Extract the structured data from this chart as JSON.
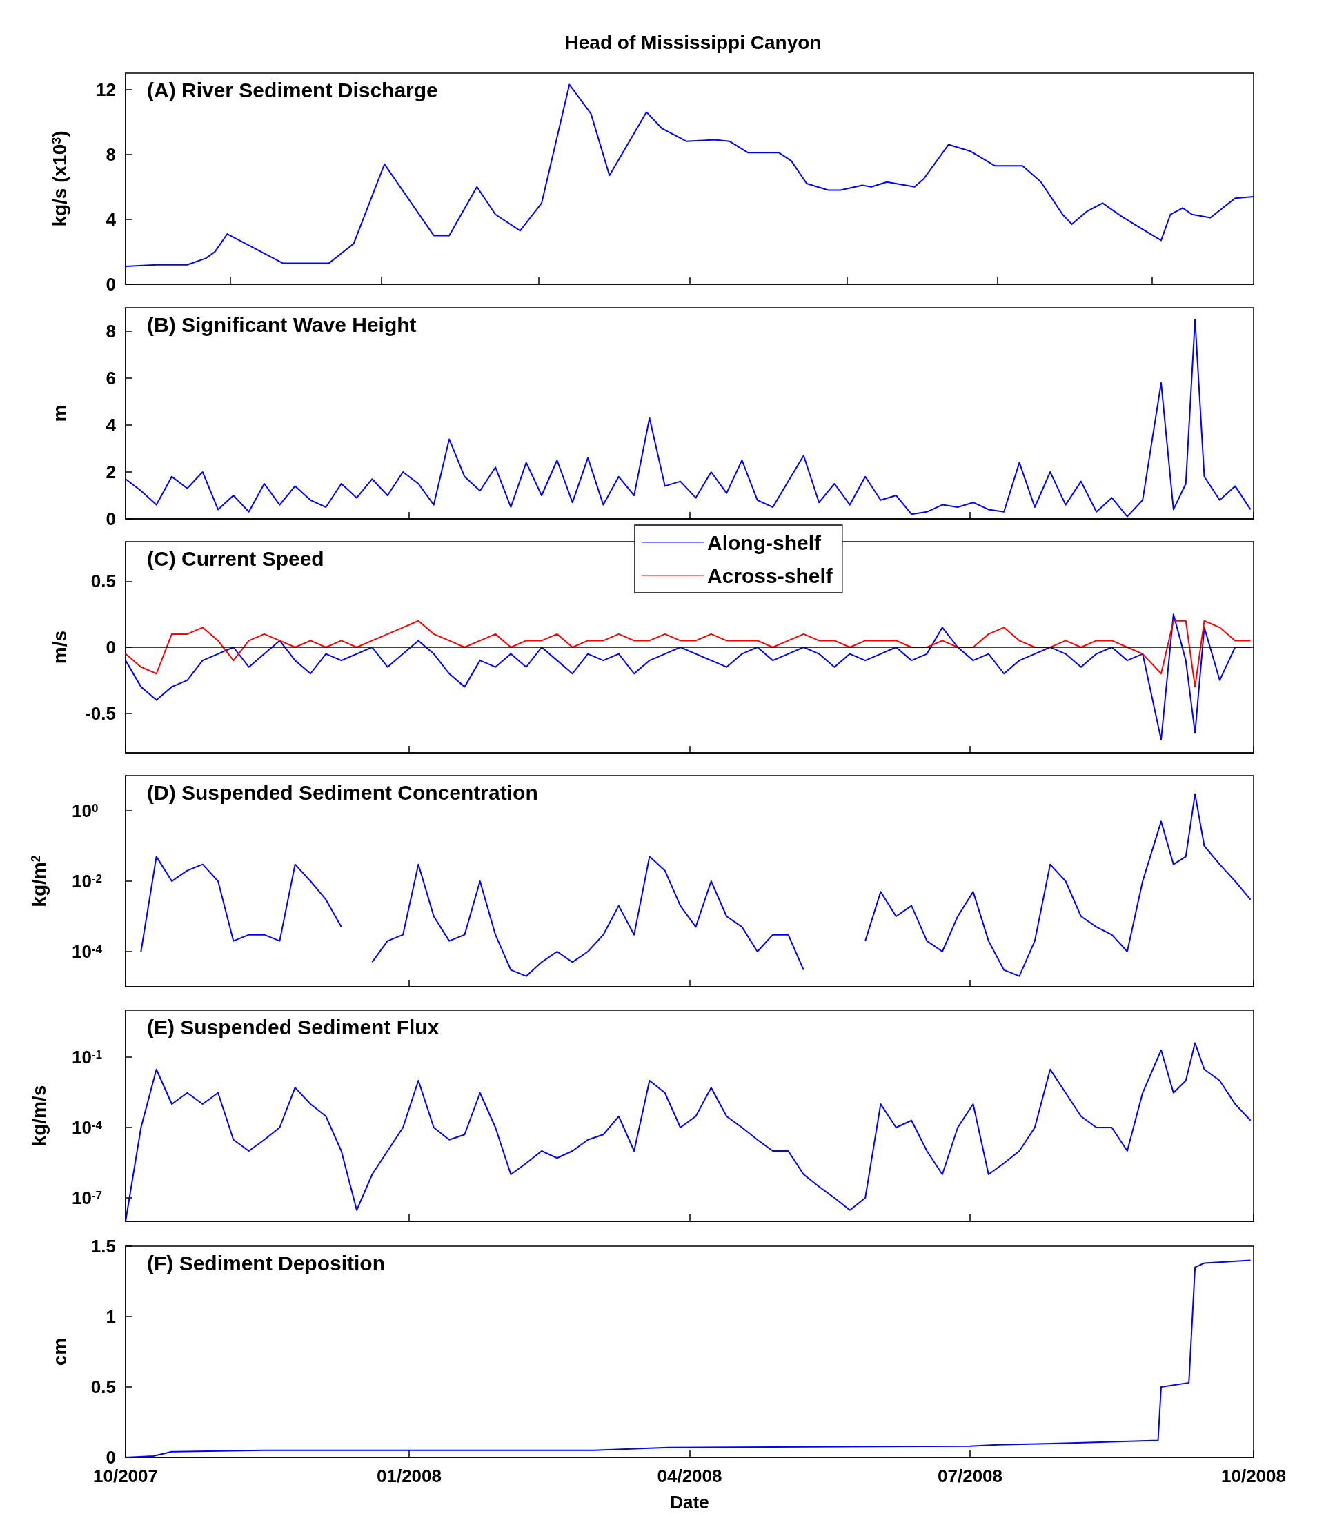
{
  "chart_data": [
    {
      "type": "line",
      "title": "Head of Mississippi Canyon",
      "subtitle": "(A) River Sediment Discharge",
      "ylabel": "kg/s (x10$^{3}$)",
      "marker": "none",
      "tick_labels": "y",
      "grid": false,
      "xlim": [
        "2007-10-01",
        "2008-10-01"
      ],
      "xticks": [
        {
          "value": "2007-11-04",
          "label": null
        },
        {
          "value": "2007-12-23",
          "label": null
        },
        {
          "value": "2008-02-12",
          "label": null
        },
        {
          "value": "2008-04-01",
          "label": null
        },
        {
          "value": "2008-05-22",
          "label": null
        },
        {
          "value": "2008-07-10",
          "label": null
        },
        {
          "value": "2008-08-29",
          "label": null
        }
      ],
      "ylim": [
        0,
        13
      ],
      "yticks": [
        0,
        4,
        8,
        12
      ],
      "color": "#0000ff",
      "x": [
        "2007-10-01",
        "2007-10-11",
        "2007-10-21",
        "2007-10-27",
        "2007-10-30",
        "2007-11-03",
        "2007-11-21",
        "2007-12-06",
        "2007-12-14",
        "2007-12-24",
        "2008-01-09",
        "2008-01-14",
        "2008-01-23",
        "2008-01-29",
        "2008-02-06",
        "2008-02-13",
        "2008-02-22",
        "2008-02-29",
        "2008-03-06",
        "2008-03-18",
        "2008-03-23",
        "2008-03-27",
        "2008-03-31",
        "2008-04-09",
        "2008-04-14",
        "2008-04-20",
        "2008-04-30",
        "2008-05-04",
        "2008-05-09",
        "2008-05-16",
        "2008-05-20",
        "2008-05-27",
        "2008-05-30",
        "2008-06-04",
        "2008-06-13",
        "2008-06-16",
        "2008-06-24",
        "2008-07-01",
        "2008-07-09",
        "2008-07-18",
        "2008-07-24",
        "2008-07-31",
        "2008-08-03",
        "2008-08-08",
        "2008-08-13",
        "2008-08-19",
        "2008-08-25",
        "2008-09-01",
        "2008-09-04",
        "2008-09-08",
        "2008-09-11",
        "2008-09-17",
        "2008-09-25",
        "2008-10-01"
      ],
      "values": [
        1.1,
        1.2,
        1.2,
        1.6,
        2.0,
        3.1,
        1.3,
        1.3,
        2.5,
        7.4,
        3.0,
        3.0,
        6.0,
        4.3,
        3.3,
        5.0,
        12.3,
        10.5,
        6.7,
        10.6,
        9.6,
        9.2,
        8.8,
        8.9,
        8.8,
        8.1,
        8.1,
        7.6,
        6.2,
        5.8,
        5.8,
        6.1,
        6.0,
        6.3,
        6.0,
        6.5,
        8.6,
        8.2,
        7.3,
        7.3,
        6.3,
        4.3,
        3.7,
        4.5,
        5.0,
        4.2,
        3.5,
        2.7,
        4.3,
        4.7,
        4.3,
        4.1,
        5.3,
        5.4
      ]
    },
    {
      "type": "line",
      "title": "(B) Significant Wave Height",
      "ylabel": "m",
      "marker": "none",
      "tick_labels": "y",
      "grid": false,
      "xlim": [
        "2007-10-01",
        "2008-10-01"
      ],
      "xticks": [
        {
          "value": "2007-10-01",
          "label": null
        },
        {
          "value": "2008-01-01",
          "label": null
        },
        {
          "value": "2008-04-01",
          "label": null
        },
        {
          "value": "2008-07-01",
          "label": null
        },
        {
          "value": "2008-10-01",
          "label": null
        }
      ],
      "ylim": [
        0,
        9
      ],
      "yticks": [
        0,
        2,
        4,
        6,
        8
      ],
      "color": "#0000ff",
      "x": [
        "2007-10-01",
        "2007-10-06",
        "2007-10-11",
        "2007-10-16",
        "2007-10-21",
        "2007-10-26",
        "2007-10-31",
        "2007-11-05",
        "2007-11-10",
        "2007-11-15",
        "2007-11-20",
        "2007-11-25",
        "2007-11-30",
        "2007-12-05",
        "2007-12-10",
        "2007-12-15",
        "2007-12-20",
        "2007-12-25",
        "2007-12-30",
        "2008-01-04",
        "2008-01-09",
        "2008-01-14",
        "2008-01-19",
        "2008-01-24",
        "2008-01-29",
        "2008-02-03",
        "2008-02-08",
        "2008-02-13",
        "2008-02-18",
        "2008-02-23",
        "2008-02-28",
        "2008-03-04",
        "2008-03-09",
        "2008-03-14",
        "2008-03-19",
        "2008-03-24",
        "2008-03-29",
        "2008-04-03",
        "2008-04-08",
        "2008-04-13",
        "2008-04-18",
        "2008-04-23",
        "2008-04-28",
        "2008-05-03",
        "2008-05-08",
        "2008-05-13",
        "2008-05-18",
        "2008-05-23",
        "2008-05-28",
        "2008-06-02",
        "2008-06-07",
        "2008-06-12",
        "2008-06-17",
        "2008-06-22",
        "2008-06-27",
        "2008-07-02",
        "2008-07-07",
        "2008-07-12",
        "2008-07-17",
        "2008-07-22",
        "2008-07-27",
        "2008-08-01",
        "2008-08-06",
        "2008-08-11",
        "2008-08-16",
        "2008-08-21",
        "2008-08-26",
        "2008-09-01",
        "2008-09-05",
        "2008-09-09",
        "2008-09-12",
        "2008-09-15",
        "2008-09-20",
        "2008-09-25",
        "2008-09-30"
      ],
      "values": [
        1.7,
        1.2,
        0.6,
        1.8,
        1.3,
        2.0,
        0.4,
        1.0,
        0.3,
        1.5,
        0.6,
        1.4,
        0.8,
        0.5,
        1.5,
        0.9,
        1.7,
        1.0,
        2.0,
        1.5,
        0.6,
        3.4,
        1.8,
        1.2,
        2.2,
        0.5,
        2.4,
        1.0,
        2.5,
        0.7,
        2.6,
        0.6,
        1.8,
        1.0,
        4.3,
        1.4,
        1.6,
        0.9,
        2.0,
        1.1,
        2.5,
        0.8,
        0.5,
        1.6,
        2.7,
        0.7,
        1.5,
        0.6,
        1.8,
        0.8,
        1.0,
        0.2,
        0.3,
        0.6,
        0.5,
        0.7,
        0.4,
        0.3,
        2.4,
        0.5,
        2.0,
        0.6,
        1.6,
        0.3,
        0.9,
        0.1,
        0.8,
        5.8,
        0.4,
        1.5,
        8.5,
        1.8,
        0.8,
        1.4,
        0.4
      ]
    },
    {
      "type": "line",
      "title": "(C) Current Speed",
      "ylabel": "m/s",
      "marker": "none",
      "tick_labels": "y",
      "grid": false,
      "legend": "top",
      "xlim": [
        "2007-10-01",
        "2008-10-01"
      ],
      "xticks": [
        {
          "value": "2007-10-01",
          "label": null
        },
        {
          "value": "2008-01-01",
          "label": null
        },
        {
          "value": "2008-04-01",
          "label": null
        },
        {
          "value": "2008-07-01",
          "label": null
        },
        {
          "value": "2008-10-01",
          "label": null
        }
      ],
      "ylim": [
        -0.8,
        0.8
      ],
      "yticks": [
        -0.5,
        0,
        0.5
      ],
      "ref_lines": [
        {
          "axis": "y",
          "value": 0,
          "color": "#000000"
        }
      ],
      "x": [
        "2007-10-01",
        "2007-10-06",
        "2007-10-11",
        "2007-10-16",
        "2007-10-21",
        "2007-10-26",
        "2007-10-31",
        "2007-11-05",
        "2007-11-10",
        "2007-11-15",
        "2007-11-20",
        "2007-11-25",
        "2007-11-30",
        "2007-12-05",
        "2007-12-10",
        "2007-12-15",
        "2007-12-20",
        "2007-12-25",
        "2007-12-30",
        "2008-01-04",
        "2008-01-09",
        "2008-01-14",
        "2008-01-19",
        "2008-01-24",
        "2008-01-29",
        "2008-02-03",
        "2008-02-08",
        "2008-02-13",
        "2008-02-18",
        "2008-02-23",
        "2008-02-28",
        "2008-03-04",
        "2008-03-09",
        "2008-03-14",
        "2008-03-19",
        "2008-03-24",
        "2008-03-29",
        "2008-04-03",
        "2008-04-08",
        "2008-04-13",
        "2008-04-18",
        "2008-04-23",
        "2008-04-28",
        "2008-05-03",
        "2008-05-08",
        "2008-05-13",
        "2008-05-18",
        "2008-05-23",
        "2008-05-28",
        "2008-06-02",
        "2008-06-07",
        "2008-06-12",
        "2008-06-17",
        "2008-06-22",
        "2008-06-27",
        "2008-07-02",
        "2008-07-07",
        "2008-07-12",
        "2008-07-17",
        "2008-07-22",
        "2008-07-27",
        "2008-08-01",
        "2008-08-06",
        "2008-08-11",
        "2008-08-16",
        "2008-08-21",
        "2008-08-26",
        "2008-09-01",
        "2008-09-05",
        "2008-09-09",
        "2008-09-12",
        "2008-09-15",
        "2008-09-20",
        "2008-09-25",
        "2008-09-30"
      ],
      "series": [
        {
          "name": "Along-shelf",
          "color": "#0000ff",
          "values": [
            -0.1,
            -0.3,
            -0.4,
            -0.3,
            -0.25,
            -0.1,
            -0.05,
            0.0,
            -0.15,
            -0.05,
            0.05,
            -0.1,
            -0.2,
            -0.05,
            -0.1,
            -0.05,
            0.0,
            -0.15,
            -0.05,
            0.05,
            -0.05,
            -0.2,
            -0.3,
            -0.1,
            -0.15,
            -0.05,
            -0.15,
            0.0,
            -0.1,
            -0.2,
            -0.05,
            -0.1,
            -0.05,
            -0.2,
            -0.1,
            -0.05,
            0.0,
            -0.05,
            -0.1,
            -0.15,
            -0.05,
            0.0,
            -0.1,
            -0.05,
            0.0,
            -0.05,
            -0.15,
            -0.05,
            -0.1,
            -0.05,
            0.0,
            -0.1,
            -0.05,
            0.15,
            0.0,
            -0.1,
            -0.05,
            -0.2,
            -0.1,
            -0.05,
            0.0,
            -0.05,
            -0.15,
            -0.05,
            0.0,
            -0.1,
            -0.05,
            -0.7,
            0.25,
            -0.1,
            -0.65,
            0.15,
            -0.25,
            0.0,
            0.0
          ]
        },
        {
          "name": "Across-shelf",
          "color": "#ff0000",
          "values": [
            -0.05,
            -0.15,
            -0.2,
            0.1,
            0.1,
            0.15,
            0.05,
            -0.1,
            0.05,
            0.1,
            0.05,
            0.0,
            0.05,
            0.0,
            0.05,
            0.0,
            0.05,
            0.1,
            0.15,
            0.2,
            0.1,
            0.05,
            0.0,
            0.05,
            0.1,
            0.0,
            0.05,
            0.05,
            0.1,
            0.0,
            0.05,
            0.05,
            0.1,
            0.05,
            0.05,
            0.1,
            0.05,
            0.05,
            0.1,
            0.05,
            0.05,
            0.05,
            0.0,
            0.05,
            0.1,
            0.05,
            0.05,
            0.0,
            0.05,
            0.05,
            0.05,
            0.0,
            0.0,
            0.05,
            0.0,
            0.0,
            0.1,
            0.15,
            0.05,
            0.0,
            0.0,
            0.05,
            0.0,
            0.05,
            0.05,
            0.0,
            -0.05,
            -0.2,
            0.2,
            0.2,
            -0.3,
            0.2,
            0.15,
            0.05,
            0.05
          ]
        }
      ]
    },
    {
      "type": "line",
      "title": "(D) Suspended Sediment Concentration",
      "ylabel": "kg/m$^{2}$",
      "marker": "none",
      "tick_labels": "y",
      "grid": false,
      "log": "y",
      "xlim": [
        "2007-10-01",
        "2008-10-01"
      ],
      "xticks": [
        {
          "value": "2007-10-01",
          "label": null
        },
        {
          "value": "2008-01-01",
          "label": null
        },
        {
          "value": "2008-04-01",
          "label": null
        },
        {
          "value": "2008-07-01",
          "label": null
        },
        {
          "value": "2008-10-01",
          "label": null
        }
      ],
      "ylim": [
        1e-05,
        10
      ],
      "yticks": [
        {
          "value": 0.0001,
          "label": "10$^{-4}$"
        },
        {
          "value": 0.01,
          "label": "10$^{-2}$"
        },
        {
          "value": 1,
          "label": "10$^{0}$"
        }
      ],
      "color": "#0000ff",
      "x": [
        "2007-10-06",
        "2007-10-11",
        "2007-10-16",
        "2007-10-21",
        "2007-10-26",
        "2007-10-31",
        "2007-11-05",
        "2007-11-10",
        "2007-11-15",
        "2007-11-20",
        "2007-11-25",
        "2007-11-30",
        "2007-12-05",
        "2007-12-10",
        "2007-12-15",
        "2007-12-20",
        "2007-12-25",
        "2007-12-30",
        "2008-01-04",
        "2008-01-09",
        "2008-01-14",
        "2008-01-19",
        "2008-01-24",
        "2008-01-29",
        "2008-02-03",
        "2008-02-08",
        "2008-02-13",
        "2008-02-18",
        "2008-02-23",
        "2008-02-28",
        "2008-03-04",
        "2008-03-09",
        "2008-03-14",
        "2008-03-19",
        "2008-03-24",
        "2008-03-29",
        "2008-04-03",
        "2008-04-08",
        "2008-04-13",
        "2008-04-18",
        "2008-04-23",
        "2008-04-28",
        "2008-05-03",
        "2008-05-08",
        "2008-05-13",
        "2008-05-18",
        "2008-05-23",
        "2008-05-28",
        "2008-06-02",
        "2008-06-07",
        "2008-06-12",
        "2008-06-17",
        "2008-06-22",
        "2008-06-27",
        "2008-07-02",
        "2008-07-07",
        "2008-07-12",
        "2008-07-17",
        "2008-07-22",
        "2008-07-27",
        "2008-08-01",
        "2008-08-06",
        "2008-08-11",
        "2008-08-16",
        "2008-08-21",
        "2008-08-26",
        "2008-09-01",
        "2008-09-05",
        "2008-09-09",
        "2008-09-12",
        "2008-09-15",
        "2008-09-20",
        "2008-09-25",
        "2008-09-30"
      ],
      "values": [
        0.0001,
        0.05,
        0.01,
        0.02,
        0.03,
        0.01,
        0.0002,
        0.0003,
        0.0003,
        0.0002,
        0.03,
        0.01,
        0.003,
        0.0005,
        null,
        5e-05,
        0.0002,
        0.0003,
        0.03,
        0.001,
        0.0002,
        0.0003,
        0.01,
        0.0003,
        3e-05,
        2e-05,
        5e-05,
        0.0001,
        5e-05,
        0.0001,
        0.0003,
        0.002,
        0.0003,
        0.05,
        0.02,
        0.002,
        0.0005,
        0.01,
        0.001,
        0.0005,
        0.0001,
        0.0003,
        0.0003,
        3e-05,
        null,
        null,
        null,
        0.0002,
        0.005,
        0.001,
        0.002,
        0.0002,
        0.0001,
        0.001,
        0.005,
        0.0002,
        3e-05,
        2e-05,
        0.0002,
        0.03,
        0.01,
        0.001,
        0.0005,
        0.0003,
        0.0001,
        0.01,
        0.5,
        0.03,
        0.05,
        3,
        0.1,
        0.03,
        0.01,
        0.003
      ]
    },
    {
      "type": "line",
      "title": "(E) Suspended Sediment Flux",
      "ylabel": "kg/m/s",
      "marker": "none",
      "tick_labels": "y",
      "grid": false,
      "log": "y",
      "xlim": [
        "2007-10-01",
        "2008-10-01"
      ],
      "xticks": [
        {
          "value": "2007-10-01",
          "label": null
        },
        {
          "value": "2008-01-01",
          "label": null
        },
        {
          "value": "2008-04-01",
          "label": null
        },
        {
          "value": "2008-07-01",
          "label": null
        },
        {
          "value": "2008-10-01",
          "label": null
        }
      ],
      "ylim": [
        1e-08,
        10
      ],
      "yticks": [
        {
          "value": 1e-07,
          "label": "10$^{-7}$"
        },
        {
          "value": 0.0001,
          "label": "10$^{-4}$"
        },
        {
          "value": 0.1,
          "label": "10$^{-1}$"
        }
      ],
      "color": "#0000ff",
      "x": [
        "2007-10-01",
        "2007-10-06",
        "2007-10-11",
        "2007-10-16",
        "2007-10-21",
        "2007-10-26",
        "2007-10-31",
        "2007-11-05",
        "2007-11-10",
        "2007-11-15",
        "2007-11-20",
        "2007-11-25",
        "2007-11-30",
        "2007-12-05",
        "2007-12-10",
        "2007-12-15",
        "2007-12-20",
        "2007-12-25",
        "2007-12-30",
        "2008-01-04",
        "2008-01-09",
        "2008-01-14",
        "2008-01-19",
        "2008-01-24",
        "2008-01-29",
        "2008-02-03",
        "2008-02-08",
        "2008-02-13",
        "2008-02-18",
        "2008-02-23",
        "2008-02-28",
        "2008-03-04",
        "2008-03-09",
        "2008-03-14",
        "2008-03-19",
        "2008-03-24",
        "2008-03-29",
        "2008-04-03",
        "2008-04-08",
        "2008-04-13",
        "2008-04-18",
        "2008-04-23",
        "2008-04-28",
        "2008-05-03",
        "2008-05-08",
        "2008-05-13",
        "2008-05-18",
        "2008-05-23",
        "2008-05-28",
        "2008-06-02",
        "2008-06-07",
        "2008-06-12",
        "2008-06-17",
        "2008-06-22",
        "2008-06-27",
        "2008-07-02",
        "2008-07-07",
        "2008-07-12",
        "2008-07-17",
        "2008-07-22",
        "2008-07-27",
        "2008-08-01",
        "2008-08-06",
        "2008-08-11",
        "2008-08-16",
        "2008-08-21",
        "2008-08-26",
        "2008-09-01",
        "2008-09-05",
        "2008-09-09",
        "2008-09-12",
        "2008-09-15",
        "2008-09-20",
        "2008-09-25",
        "2008-09-30"
      ],
      "values": [
        1e-08,
        0.0001,
        0.03,
        0.001,
        0.003,
        0.001,
        0.003,
        3e-05,
        1e-05,
        3e-05,
        0.0001,
        0.005,
        0.001,
        0.0003,
        1e-05,
        3e-08,
        1e-06,
        1e-05,
        0.0001,
        0.01,
        0.0001,
        3e-05,
        5e-05,
        0.003,
        0.0001,
        1e-06,
        3e-06,
        1e-05,
        5e-06,
        1e-05,
        3e-05,
        5e-05,
        0.0003,
        1e-05,
        0.01,
        0.003,
        0.0001,
        0.0003,
        0.005,
        0.0003,
        0.0001,
        3e-05,
        1e-05,
        1e-05,
        1e-06,
        3e-07,
        1e-07,
        3e-08,
        1e-07,
        0.001,
        0.0001,
        0.0002,
        1e-05,
        1e-06,
        0.0001,
        0.001,
        1e-06,
        3e-06,
        1e-05,
        0.0001,
        0.03,
        0.003,
        0.0003,
        0.0001,
        0.0001,
        1e-05,
        0.003,
        0.2,
        0.003,
        0.01,
        0.4,
        0.03,
        0.01,
        0.001,
        0.0002
      ]
    },
    {
      "type": "line",
      "title": "(F) Sediment Deposition",
      "xlabel": "Date",
      "ylabel": "cm",
      "marker": "none",
      "grid": false,
      "xlim": [
        "2007-10-01",
        "2008-10-01"
      ],
      "xticks": [
        {
          "value": "2007-10-01",
          "label": "10/2007"
        },
        {
          "value": "2008-01-01",
          "label": "01/2008"
        },
        {
          "value": "2008-04-01",
          "label": "04/2008"
        },
        {
          "value": "2008-07-01",
          "label": "07/2008"
        },
        {
          "value": "2008-10-01",
          "label": "10/2008"
        }
      ],
      "ylim": [
        0,
        1.5
      ],
      "yticks": [
        0,
        0.5,
        1,
        1.5
      ],
      "color": "#0000ff",
      "x": [
        "2007-10-01",
        "2007-10-10",
        "2007-10-16",
        "2007-11-15",
        "2008-03-01",
        "2008-03-25",
        "2008-07-01",
        "2008-07-10",
        "2008-08-01",
        "2008-08-31",
        "2008-09-01",
        "2008-09-10",
        "2008-09-12",
        "2008-09-15",
        "2008-09-30"
      ],
      "values": [
        0,
        0.01,
        0.04,
        0.05,
        0.05,
        0.07,
        0.08,
        0.09,
        0.1,
        0.12,
        0.5,
        0.53,
        1.35,
        1.38,
        1.4
      ]
    }
  ]
}
